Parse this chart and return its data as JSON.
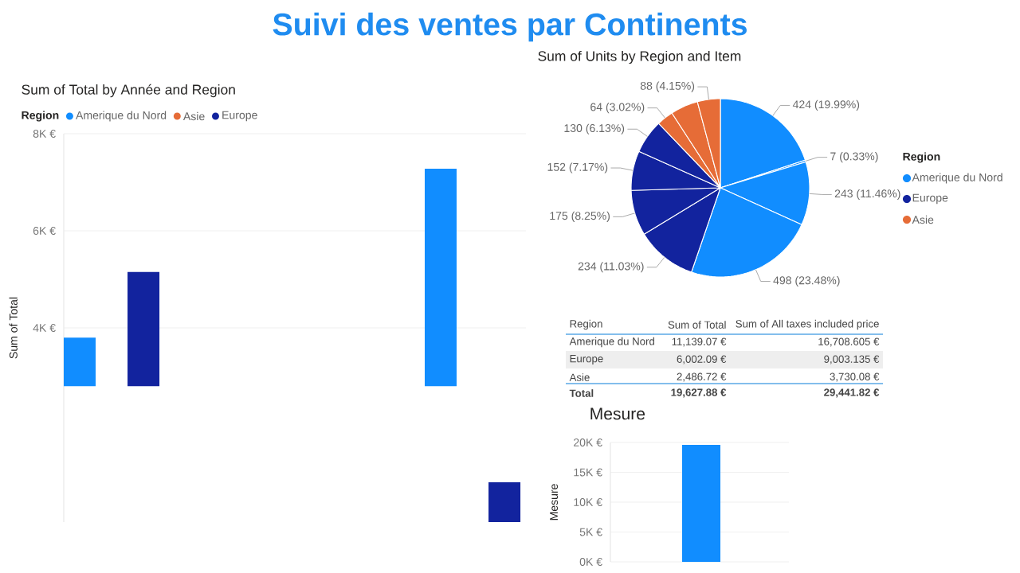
{
  "chart_data": [
    {
      "type": "bar",
      "title": "Suivi des ventes par Continents",
      "subtitle": "Sum of Total by Année and Region",
      "ylabel": "Sum of Total",
      "legend_title": "Region",
      "legend": "top left",
      "grid": "y",
      "categories": [
        null,
        null
      ],
      "ylim": [
        0,
        8000
      ],
      "yticks": [
        {
          "value": 4000,
          "label": "4K €"
        },
        {
          "value": 6000,
          "label": "6K €"
        },
        {
          "value": 8000,
          "label": "8K €"
        }
      ],
      "series": [
        {
          "name": "Amerique du Nord",
          "color": "#118dff",
          "values": [
            1000,
            4480
          ],
          "base": [
            2800,
            2800
          ]
        },
        {
          "name": "Asie",
          "color": "#e66c37",
          "values": [
            null,
            null
          ]
        },
        {
          "name": "Europe",
          "color": "#12239e",
          "values": [
            2350,
            820
          ],
          "base": [
            2800,
            0
          ]
        }
      ]
    },
    {
      "type": "pie",
      "title": "Sum of Units by Region and Item",
      "legend_title": "Region",
      "legend": "right",
      "categories": [
        "Amerique du Nord",
        null,
        null,
        null,
        "Europe",
        null,
        null,
        null,
        "Asie",
        null,
        null
      ],
      "values": [
        424,
        7,
        243,
        498,
        234,
        175,
        152,
        130,
        64,
        106,
        88
      ],
      "colors": [
        "#118dff",
        "#118dff",
        "#118dff",
        "#118dff",
        "#12239e",
        "#12239e",
        "#12239e",
        "#12239e",
        "#e66c37",
        "#e66c37",
        "#e66c37"
      ],
      "value_labels": [
        "424 (19.99%)",
        "7 (0.33%)",
        "243 (11.46%)",
        "498 (23.48%)",
        "234 (11.03%)",
        "175 (8.25%)",
        "152 (7.17%)",
        "130 (6.13%)",
        "64 (3.02%)",
        null,
        "88 (4.15%)"
      ]
    },
    {
      "type": "other",
      "xlabel": "Region",
      "categories": [
        "Amerique du Nord",
        "Europe",
        "Asie",
        "Total"
      ],
      "series": [
        {
          "name": "Sum of Total",
          "values": [
            11139.07,
            6002.09,
            2486.72,
            19627.88
          ],
          "value_labels": [
            "11,139.07 €",
            "6,002.09 €",
            "2,486.72 €",
            "19,627.88 €"
          ]
        },
        {
          "name": "Sum of All taxes included price",
          "values": [
            16708.605,
            9003.135,
            3730.08,
            29441.82
          ],
          "value_labels": [
            "16,708.605 €",
            "9,003.135 €",
            "3,730.08 €",
            "29,441.82 €"
          ]
        }
      ]
    },
    {
      "type": "bar",
      "title": "Mesure",
      "ylabel": "Mesure",
      "grid": "y",
      "categories": [
        null
      ],
      "values": [
        19600
      ],
      "color": "#118dff",
      "ylim": [
        0,
        20000
      ],
      "yticks": [
        {
          "value": 0,
          "label": "0K €"
        },
        {
          "value": 5000,
          "label": "5K €"
        },
        {
          "value": 10000,
          "label": "10K €"
        },
        {
          "value": 15000,
          "label": "15K €"
        },
        {
          "value": 20000,
          "label": "20K €"
        }
      ]
    }
  ]
}
